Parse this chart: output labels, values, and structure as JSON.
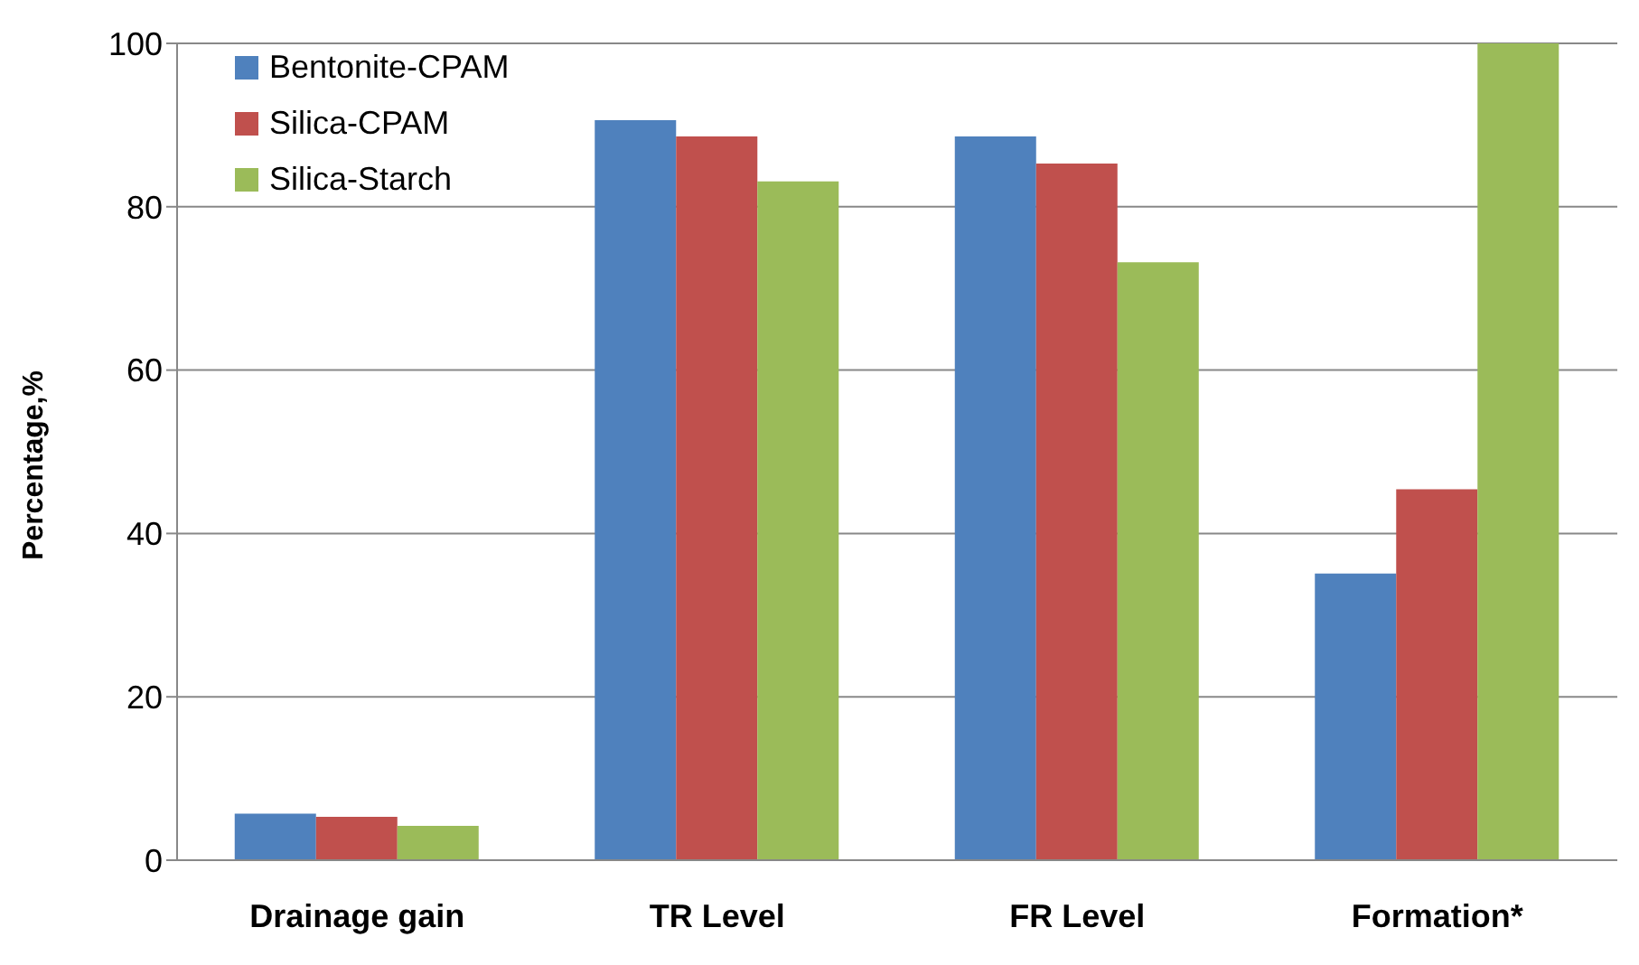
{
  "chart_data": {
    "type": "bar",
    "ylabel": "Percentage,%",
    "categories": [
      "Drainage gain",
      "TR Level",
      "FR Level",
      "Formation*"
    ],
    "series": [
      {
        "name": "Bentonite-CPAM",
        "color": "#4f81bd",
        "values": [
          5.7,
          90.6,
          88.6,
          35.1
        ]
      },
      {
        "name": "Silica-CPAM",
        "color": "#c0504d",
        "values": [
          5.3,
          88.6,
          85.3,
          45.4
        ]
      },
      {
        "name": "Silica-Starch",
        "color": "#9bbb59",
        "values": [
          4.2,
          83.1,
          73.2,
          100
        ]
      }
    ],
    "ylim": [
      0,
      100
    ],
    "yticks": [
      0,
      20,
      40,
      60,
      80,
      100
    ],
    "grid": "y",
    "legend": "top left"
  }
}
